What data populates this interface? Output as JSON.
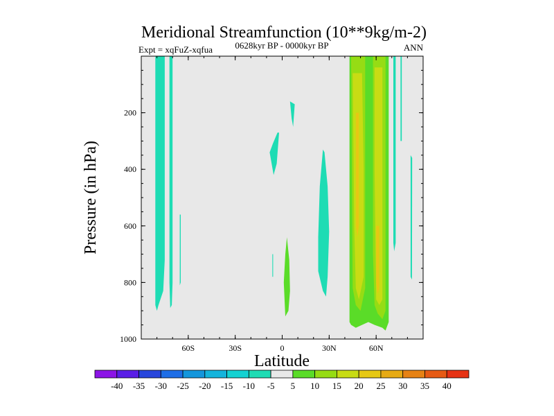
{
  "chart_data": {
    "type": "contour",
    "title": "Meridional Streamfunction (10**9kg/m-2)",
    "subtitle_left": "Expt = xqFuZ-xqfua",
    "subtitle_center": "0628kyr BP - 0000kyr BP",
    "subtitle_right": "ANN",
    "xlabel": "Latitude",
    "ylabel": "Pressure (in hPa)",
    "xlim": [
      -90,
      90
    ],
    "ylim": [
      0,
      1000
    ],
    "y_inverted": true,
    "x_ticks": [
      {
        "value": -60,
        "label": "60S"
      },
      {
        "value": -30,
        "label": "30S"
      },
      {
        "value": 0,
        "label": "0"
      },
      {
        "value": 30,
        "label": "30N"
      },
      {
        "value": 60,
        "label": "60N"
      }
    ],
    "y_ticks": [
      {
        "value": 200,
        "label": "200"
      },
      {
        "value": 400,
        "label": "400"
      },
      {
        "value": 600,
        "label": "600"
      },
      {
        "value": 800,
        "label": "800"
      },
      {
        "value": 1000,
        "label": "1000"
      }
    ],
    "background_color": "#e8e8e8",
    "colorbar": {
      "levels": [
        "-40",
        "-35",
        "-30",
        "-25",
        "-20",
        "-15",
        "-10",
        "-5",
        "5",
        "10",
        "15",
        "20",
        "25",
        "30",
        "35",
        "40"
      ],
      "colors": [
        "#8c14e6",
        "#5a1ee6",
        "#2846dc",
        "#1e6ee6",
        "#1496dc",
        "#14b4dc",
        "#14d2d2",
        "#1edcb4",
        "#e8e8e8",
        "#5adc28",
        "#96dc14",
        "#c8dc14",
        "#e6c814",
        "#e6aa14",
        "#e68214",
        "#e65a14",
        "#e63214"
      ]
    },
    "regions": [
      {
        "name": "neg-band-80S",
        "color": "#1edcb4",
        "points": [
          [
            -81,
            0
          ],
          [
            -75,
            0
          ],
          [
            -75,
            720
          ],
          [
            -76,
            830
          ],
          [
            -79,
            880
          ],
          [
            -80,
            900
          ],
          [
            -81,
            880
          ],
          [
            -81,
            600
          ],
          [
            -81,
            0
          ]
        ]
      },
      {
        "name": "neg-band-70S",
        "color": "#1edcb4",
        "points": [
          [
            -72,
            0
          ],
          [
            -70,
            0
          ],
          [
            -70,
            800
          ],
          [
            -70.5,
            880
          ],
          [
            -71.5,
            890
          ],
          [
            -72,
            800
          ],
          [
            -72,
            0
          ]
        ]
      },
      {
        "name": "neg-sliver-66S",
        "color": "#1edcb4",
        "points": [
          [
            -65.4,
            560
          ],
          [
            -64.8,
            560
          ],
          [
            -64.8,
            800
          ],
          [
            -65.4,
            810
          ],
          [
            -65.4,
            560
          ]
        ]
      },
      {
        "name": "neg-patch-eq-upper",
        "color": "#1edcb4",
        "points": [
          [
            -3,
            270
          ],
          [
            -2,
            270
          ],
          [
            -3.5,
            380
          ],
          [
            -5.5,
            420
          ],
          [
            -8,
            340
          ],
          [
            -6,
            310
          ],
          [
            -3,
            270
          ]
        ]
      },
      {
        "name": "neg-patch-5N",
        "color": "#1edcb4",
        "points": [
          [
            5,
            160
          ],
          [
            8,
            170
          ],
          [
            7,
            250
          ],
          [
            6,
            220
          ],
          [
            5,
            160
          ]
        ]
      },
      {
        "name": "neg-sliver-6S",
        "color": "#1edcb4",
        "points": [
          [
            -6.3,
            700
          ],
          [
            -5.8,
            700
          ],
          [
            -5.8,
            780
          ],
          [
            -6.3,
            780
          ],
          [
            -6.3,
            700
          ]
        ]
      },
      {
        "name": "neg-band-25N",
        "color": "#1edcb4",
        "points": [
          [
            26,
            330
          ],
          [
            27,
            340
          ],
          [
            29,
            460
          ],
          [
            30,
            620
          ],
          [
            29,
            780
          ],
          [
            28,
            850
          ],
          [
            26,
            830
          ],
          [
            23,
            760
          ],
          [
            23,
            640
          ],
          [
            24,
            460
          ],
          [
            26,
            330
          ]
        ]
      },
      {
        "name": "neg-sliver-72N",
        "color": "#1edcb4",
        "points": [
          [
            71,
            0
          ],
          [
            72.5,
            0
          ],
          [
            72.5,
            660
          ],
          [
            71.5,
            690
          ],
          [
            71,
            660
          ],
          [
            71,
            0
          ]
        ]
      },
      {
        "name": "neg-sliver-76N",
        "color": "#1edcb4",
        "points": [
          [
            75.6,
            0
          ],
          [
            76.4,
            0
          ],
          [
            76.4,
            300
          ],
          [
            75.6,
            300
          ],
          [
            75.6,
            0
          ]
        ]
      },
      {
        "name": "neg-sliver-83N",
        "color": "#1edcb4",
        "points": [
          [
            82,
            350
          ],
          [
            83,
            360
          ],
          [
            82.9,
            790
          ],
          [
            82,
            780
          ],
          [
            82,
            350
          ]
        ]
      },
      {
        "name": "pos-patch-eq-low",
        "color": "#5adc28",
        "points": [
          [
            3,
            640
          ],
          [
            4.5,
            720
          ],
          [
            5,
            830
          ],
          [
            4,
            900
          ],
          [
            2,
            920
          ],
          [
            1,
            800
          ],
          [
            2,
            700
          ],
          [
            3,
            640
          ]
        ]
      },
      {
        "name": "pos-band-50N",
        "color": "#5adc28",
        "points": [
          [
            43,
            0
          ],
          [
            68,
            0
          ],
          [
            68,
            940
          ],
          [
            66,
            970
          ],
          [
            64,
            960
          ],
          [
            59,
            950
          ],
          [
            55,
            940
          ],
          [
            51,
            950
          ],
          [
            47,
            960
          ],
          [
            44,
            950
          ],
          [
            43,
            940
          ],
          [
            43,
            0
          ]
        ]
      },
      {
        "name": "pos-core-50N",
        "color": "#96dc14",
        "points": [
          [
            44,
            0
          ],
          [
            53,
            0
          ],
          [
            53,
            820
          ],
          [
            50,
            900
          ],
          [
            47,
            880
          ],
          [
            45,
            820
          ],
          [
            44,
            0
          ]
        ]
      },
      {
        "name": "pos-core-60N",
        "color": "#96dc14",
        "points": [
          [
            58,
            0
          ],
          [
            66,
            0
          ],
          [
            66,
            900
          ],
          [
            64,
            930
          ],
          [
            61,
            910
          ],
          [
            59,
            880
          ],
          [
            58,
            700
          ],
          [
            58,
            0
          ]
        ]
      },
      {
        "name": "pos-inner-50N",
        "color": "#c8dc14",
        "points": [
          [
            45,
            60
          ],
          [
            51,
            60
          ],
          [
            52,
            400
          ],
          [
            52,
            780
          ],
          [
            49,
            860
          ],
          [
            47,
            820
          ],
          [
            46,
            600
          ],
          [
            45,
            60
          ]
        ]
      },
      {
        "name": "pos-inner-60N",
        "color": "#c8dc14",
        "points": [
          [
            59,
            40
          ],
          [
            64,
            40
          ],
          [
            64,
            860
          ],
          [
            62,
            880
          ],
          [
            60,
            860
          ],
          [
            59,
            400
          ],
          [
            59,
            40
          ]
        ]
      },
      {
        "name": "pos-peak-60N",
        "color": "#e6c814",
        "points": [
          [
            60,
            600
          ],
          [
            62,
            600
          ],
          [
            62,
            820
          ],
          [
            61,
            840
          ],
          [
            60,
            800
          ],
          [
            60,
            600
          ]
        ]
      },
      {
        "name": "pos-sliver-50N",
        "color": "#e6c814",
        "points": [
          [
            47,
            200
          ],
          [
            49,
            200
          ],
          [
            49,
            600
          ],
          [
            48,
            640
          ],
          [
            47,
            600
          ],
          [
            47,
            200
          ]
        ]
      }
    ]
  }
}
